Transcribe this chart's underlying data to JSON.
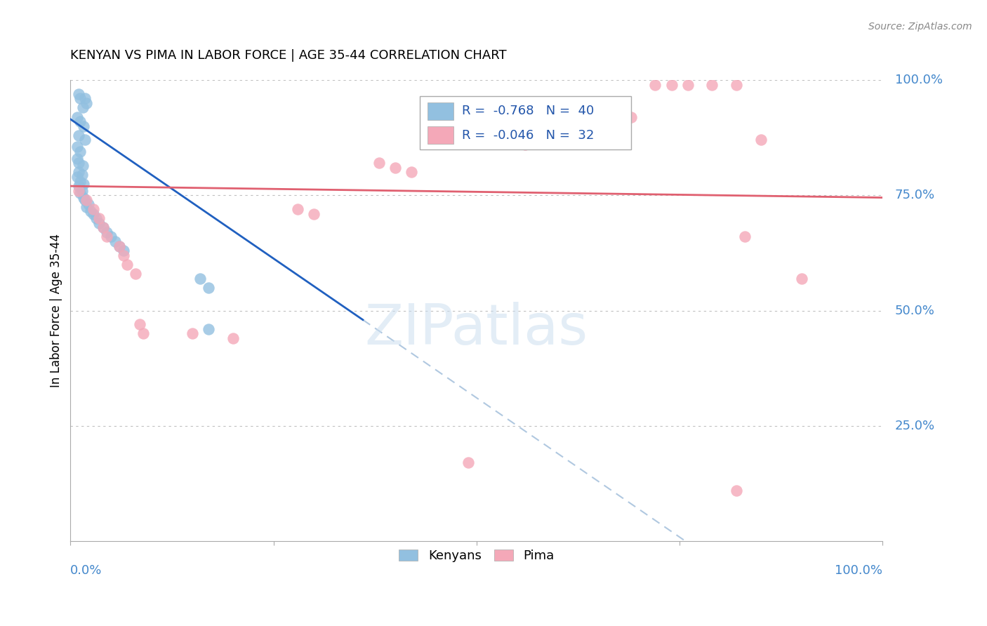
{
  "title": "KENYAN VS PIMA IN LABOR FORCE | AGE 35-44 CORRELATION CHART",
  "source": "Source: ZipAtlas.com",
  "ylabel": "In Labor Force | Age 35-44",
  "legend_kenyan_r": "-0.768",
  "legend_kenyan_n": "40",
  "legend_pima_r": "-0.046",
  "legend_pima_n": "32",
  "kenyan_color": "#92c0e0",
  "pima_color": "#f4a8b8",
  "kenyan_line_color": "#2060c0",
  "pima_line_color": "#e06070",
  "dashed_line_color": "#b0c8e0",
  "kenyan_points": [
    [
      0.01,
      0.97
    ],
    [
      0.012,
      0.96
    ],
    [
      0.015,
      0.94
    ],
    [
      0.018,
      0.96
    ],
    [
      0.02,
      0.95
    ],
    [
      0.008,
      0.92
    ],
    [
      0.012,
      0.91
    ],
    [
      0.016,
      0.9
    ],
    [
      0.01,
      0.88
    ],
    [
      0.018,
      0.87
    ],
    [
      0.008,
      0.855
    ],
    [
      0.012,
      0.845
    ],
    [
      0.008,
      0.83
    ],
    [
      0.01,
      0.82
    ],
    [
      0.015,
      0.815
    ],
    [
      0.01,
      0.8
    ],
    [
      0.014,
      0.795
    ],
    [
      0.008,
      0.79
    ],
    [
      0.012,
      0.78
    ],
    [
      0.016,
      0.775
    ],
    [
      0.01,
      0.77
    ],
    [
      0.014,
      0.76
    ],
    [
      0.012,
      0.755
    ],
    [
      0.016,
      0.745
    ],
    [
      0.018,
      0.74
    ],
    [
      0.022,
      0.73
    ],
    [
      0.02,
      0.725
    ],
    [
      0.025,
      0.715
    ],
    [
      0.028,
      0.71
    ],
    [
      0.032,
      0.7
    ],
    [
      0.035,
      0.69
    ],
    [
      0.04,
      0.68
    ],
    [
      0.045,
      0.67
    ],
    [
      0.05,
      0.66
    ],
    [
      0.055,
      0.65
    ],
    [
      0.06,
      0.64
    ],
    [
      0.065,
      0.63
    ],
    [
      0.16,
      0.57
    ],
    [
      0.17,
      0.55
    ],
    [
      0.17,
      0.46
    ]
  ],
  "pima_points": [
    [
      0.01,
      0.76
    ],
    [
      0.02,
      0.74
    ],
    [
      0.028,
      0.72
    ],
    [
      0.035,
      0.7
    ],
    [
      0.04,
      0.68
    ],
    [
      0.045,
      0.66
    ],
    [
      0.06,
      0.64
    ],
    [
      0.065,
      0.62
    ],
    [
      0.07,
      0.6
    ],
    [
      0.08,
      0.58
    ],
    [
      0.085,
      0.47
    ],
    [
      0.09,
      0.45
    ],
    [
      0.15,
      0.45
    ],
    [
      0.2,
      0.44
    ],
    [
      0.28,
      0.72
    ],
    [
      0.3,
      0.71
    ],
    [
      0.38,
      0.82
    ],
    [
      0.4,
      0.81
    ],
    [
      0.42,
      0.8
    ],
    [
      0.49,
      0.17
    ],
    [
      0.56,
      0.86
    ],
    [
      0.64,
      0.88
    ],
    [
      0.69,
      0.92
    ],
    [
      0.72,
      0.99
    ],
    [
      0.74,
      0.99
    ],
    [
      0.76,
      0.99
    ],
    [
      0.79,
      0.99
    ],
    [
      0.82,
      0.99
    ],
    [
      0.83,
      0.66
    ],
    [
      0.85,
      0.87
    ],
    [
      0.9,
      0.57
    ],
    [
      0.82,
      0.11
    ]
  ]
}
